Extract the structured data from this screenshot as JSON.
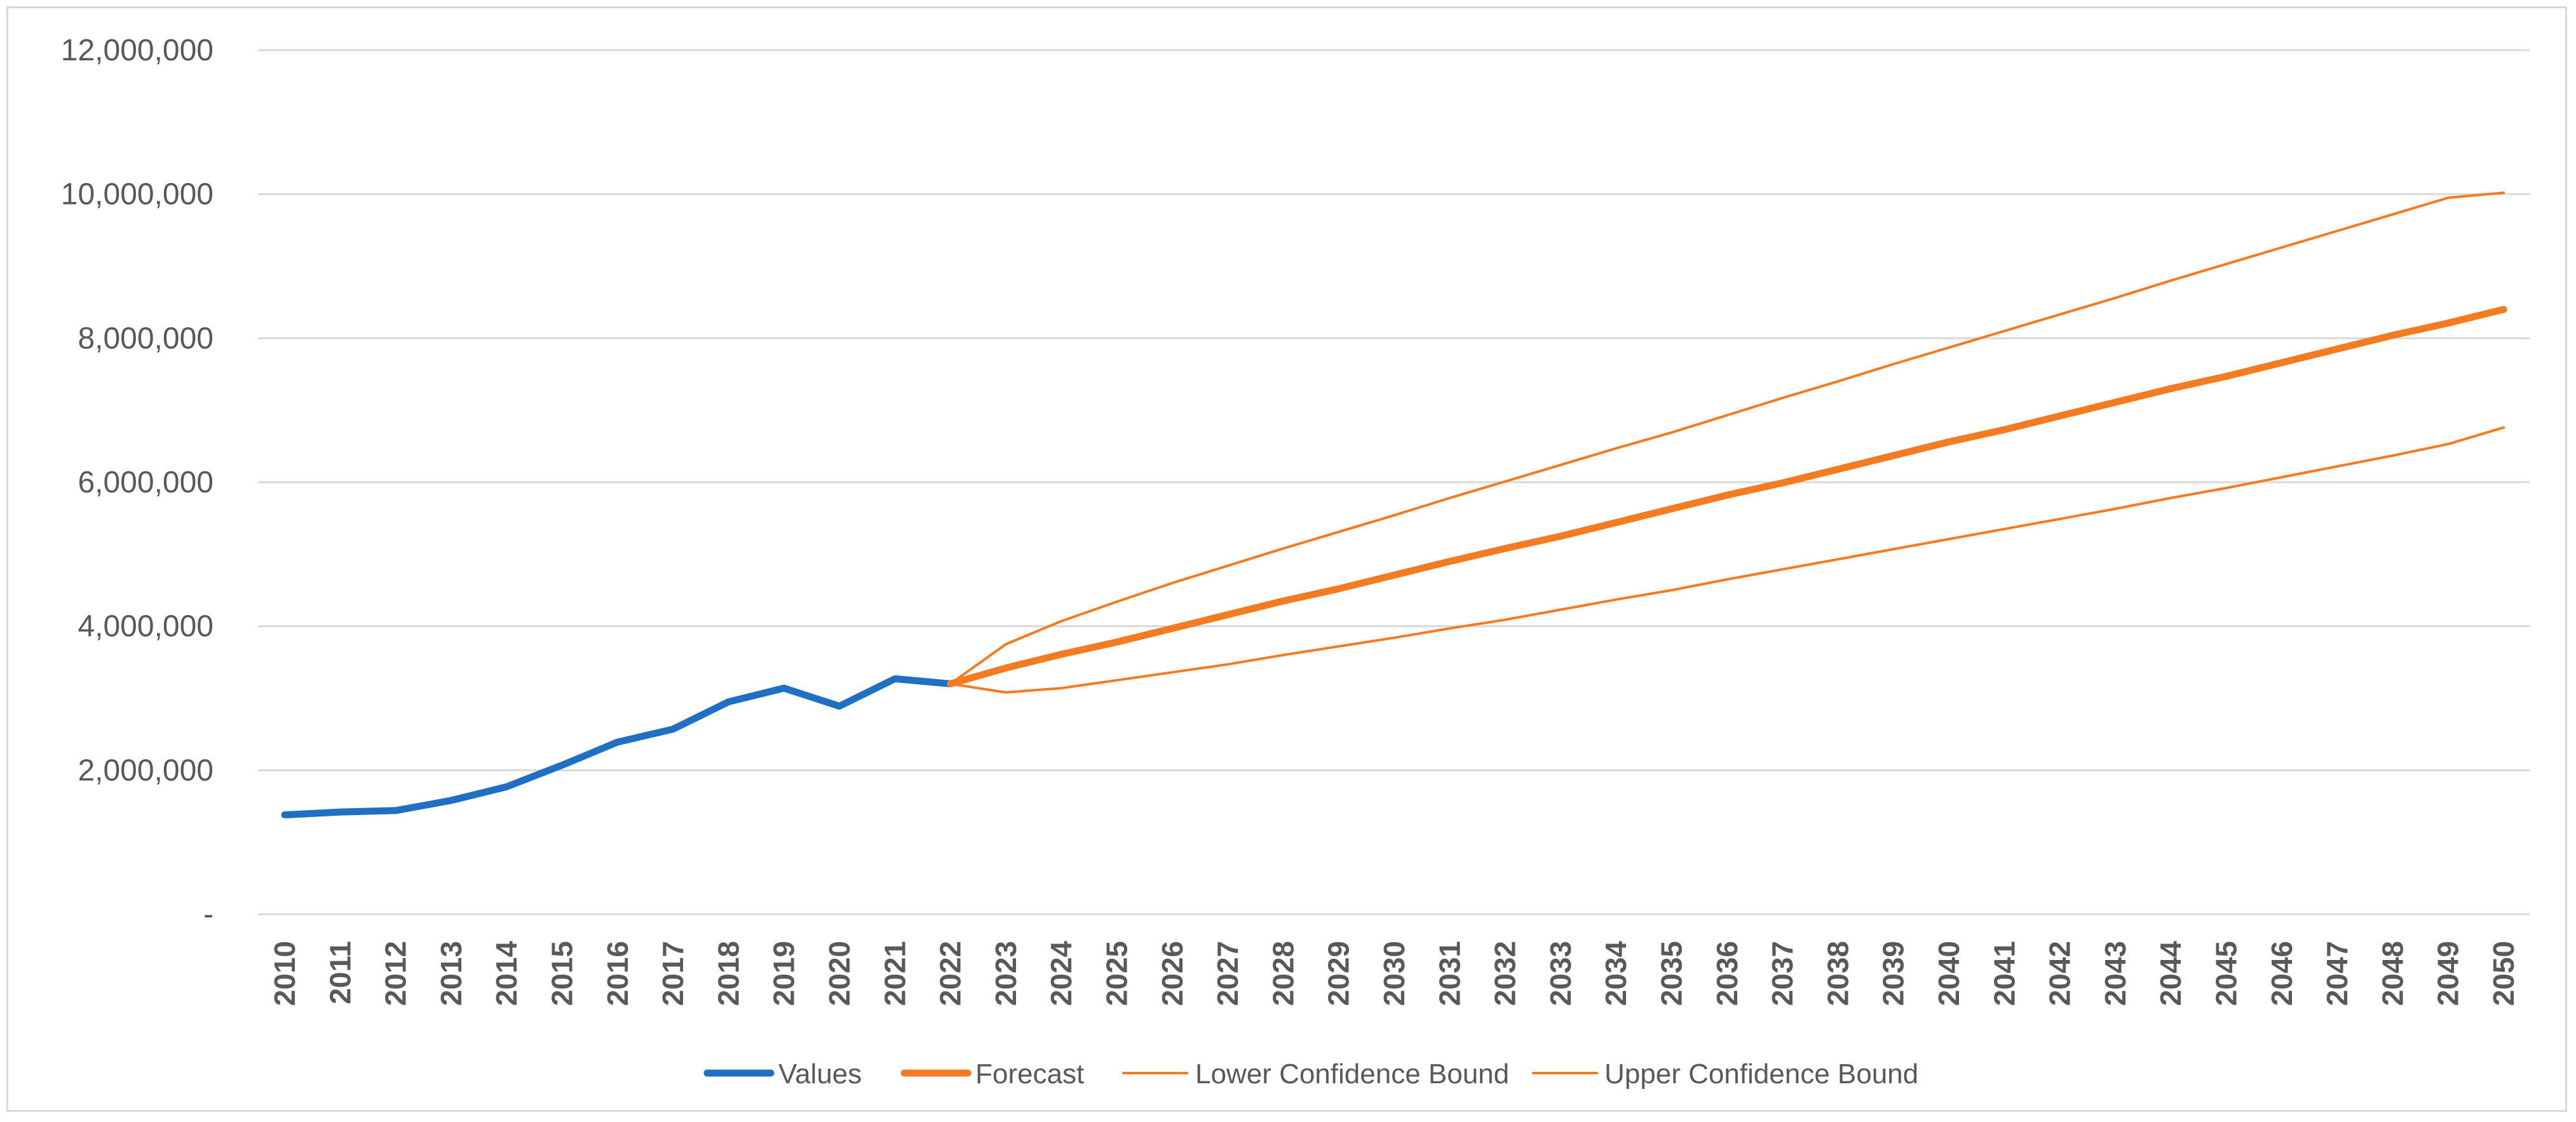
{
  "chart_data": {
    "type": "line",
    "title": "",
    "xlabel": "",
    "ylabel": "",
    "x": [
      "2010",
      "2011",
      "2012",
      "2013",
      "2014",
      "2015",
      "2016",
      "2017",
      "2018",
      "2019",
      "2020",
      "2021",
      "2022",
      "2023",
      "2024",
      "2025",
      "2026",
      "2027",
      "2028",
      "2029",
      "2030",
      "2031",
      "2032",
      "2033",
      "2034",
      "2035",
      "2036",
      "2037",
      "2038",
      "2039",
      "2040",
      "2041",
      "2042",
      "2043",
      "2044",
      "2045",
      "2046",
      "2047",
      "2048",
      "2049",
      "2050"
    ],
    "ylim": [
      0,
      12000000
    ],
    "yticks": [
      {
        "value": 0,
        "label": "-"
      },
      {
        "value": 2000000,
        "label": "2,000,000"
      },
      {
        "value": 4000000,
        "label": "4,000,000"
      },
      {
        "value": 6000000,
        "label": "6,000,000"
      },
      {
        "value": 8000000,
        "label": "8,000,000"
      },
      {
        "value": 10000000,
        "label": "10,000,000"
      },
      {
        "value": 12000000,
        "label": "12,000,000"
      }
    ],
    "grid": true,
    "legend_position": "bottom",
    "series": [
      {
        "name": "Values",
        "color": "#1f6fc5",
        "style": "thick",
        "values": [
          1380000,
          1420000,
          1440000,
          1580000,
          1770000,
          2070000,
          2390000,
          2570000,
          2950000,
          3140000,
          2890000,
          3270000,
          3200000,
          null,
          null,
          null,
          null,
          null,
          null,
          null,
          null,
          null,
          null,
          null,
          null,
          null,
          null,
          null,
          null,
          null,
          null,
          null,
          null,
          null,
          null,
          null,
          null,
          null,
          null,
          null,
          null
        ]
      },
      {
        "name": "Forecast",
        "color": "#f47b20",
        "style": "thick",
        "values": [
          null,
          null,
          null,
          null,
          null,
          null,
          null,
          null,
          null,
          null,
          null,
          null,
          3200000,
          3420000,
          3610000,
          3780000,
          3970000,
          4160000,
          4350000,
          4520000,
          4710000,
          4900000,
          5080000,
          5250000,
          5440000,
          5630000,
          5820000,
          5990000,
          6180000,
          6370000,
          6560000,
          6730000,
          6920000,
          7110000,
          7300000,
          7470000,
          7660000,
          7850000,
          8040000,
          8210000,
          8400000
        ]
      },
      {
        "name": "Lower Confidence Bound",
        "color": "#f47b20",
        "style": "thin",
        "values": [
          null,
          null,
          null,
          null,
          null,
          null,
          null,
          null,
          null,
          null,
          null,
          null,
          3200000,
          3080000,
          3140000,
          3250000,
          3360000,
          3470000,
          3600000,
          3720000,
          3840000,
          3970000,
          4090000,
          4230000,
          4370000,
          4500000,
          4650000,
          4790000,
          4930000,
          5070000,
          5210000,
          5350000,
          5490000,
          5630000,
          5780000,
          5920000,
          6070000,
          6220000,
          6370000,
          6530000,
          6760000
        ]
      },
      {
        "name": "Upper Confidence Bound",
        "color": "#f47b20",
        "style": "thin",
        "values": [
          null,
          null,
          null,
          null,
          null,
          null,
          null,
          null,
          null,
          null,
          null,
          null,
          3200000,
          3750000,
          4070000,
          4340000,
          4600000,
          4840000,
          5080000,
          5310000,
          5540000,
          5780000,
          6010000,
          6240000,
          6470000,
          6690000,
          6930000,
          7170000,
          7400000,
          7640000,
          7870000,
          8100000,
          8330000,
          8560000,
          8800000,
          9030000,
          9260000,
          9490000,
          9720000,
          9950000,
          10020000
        ]
      }
    ]
  }
}
